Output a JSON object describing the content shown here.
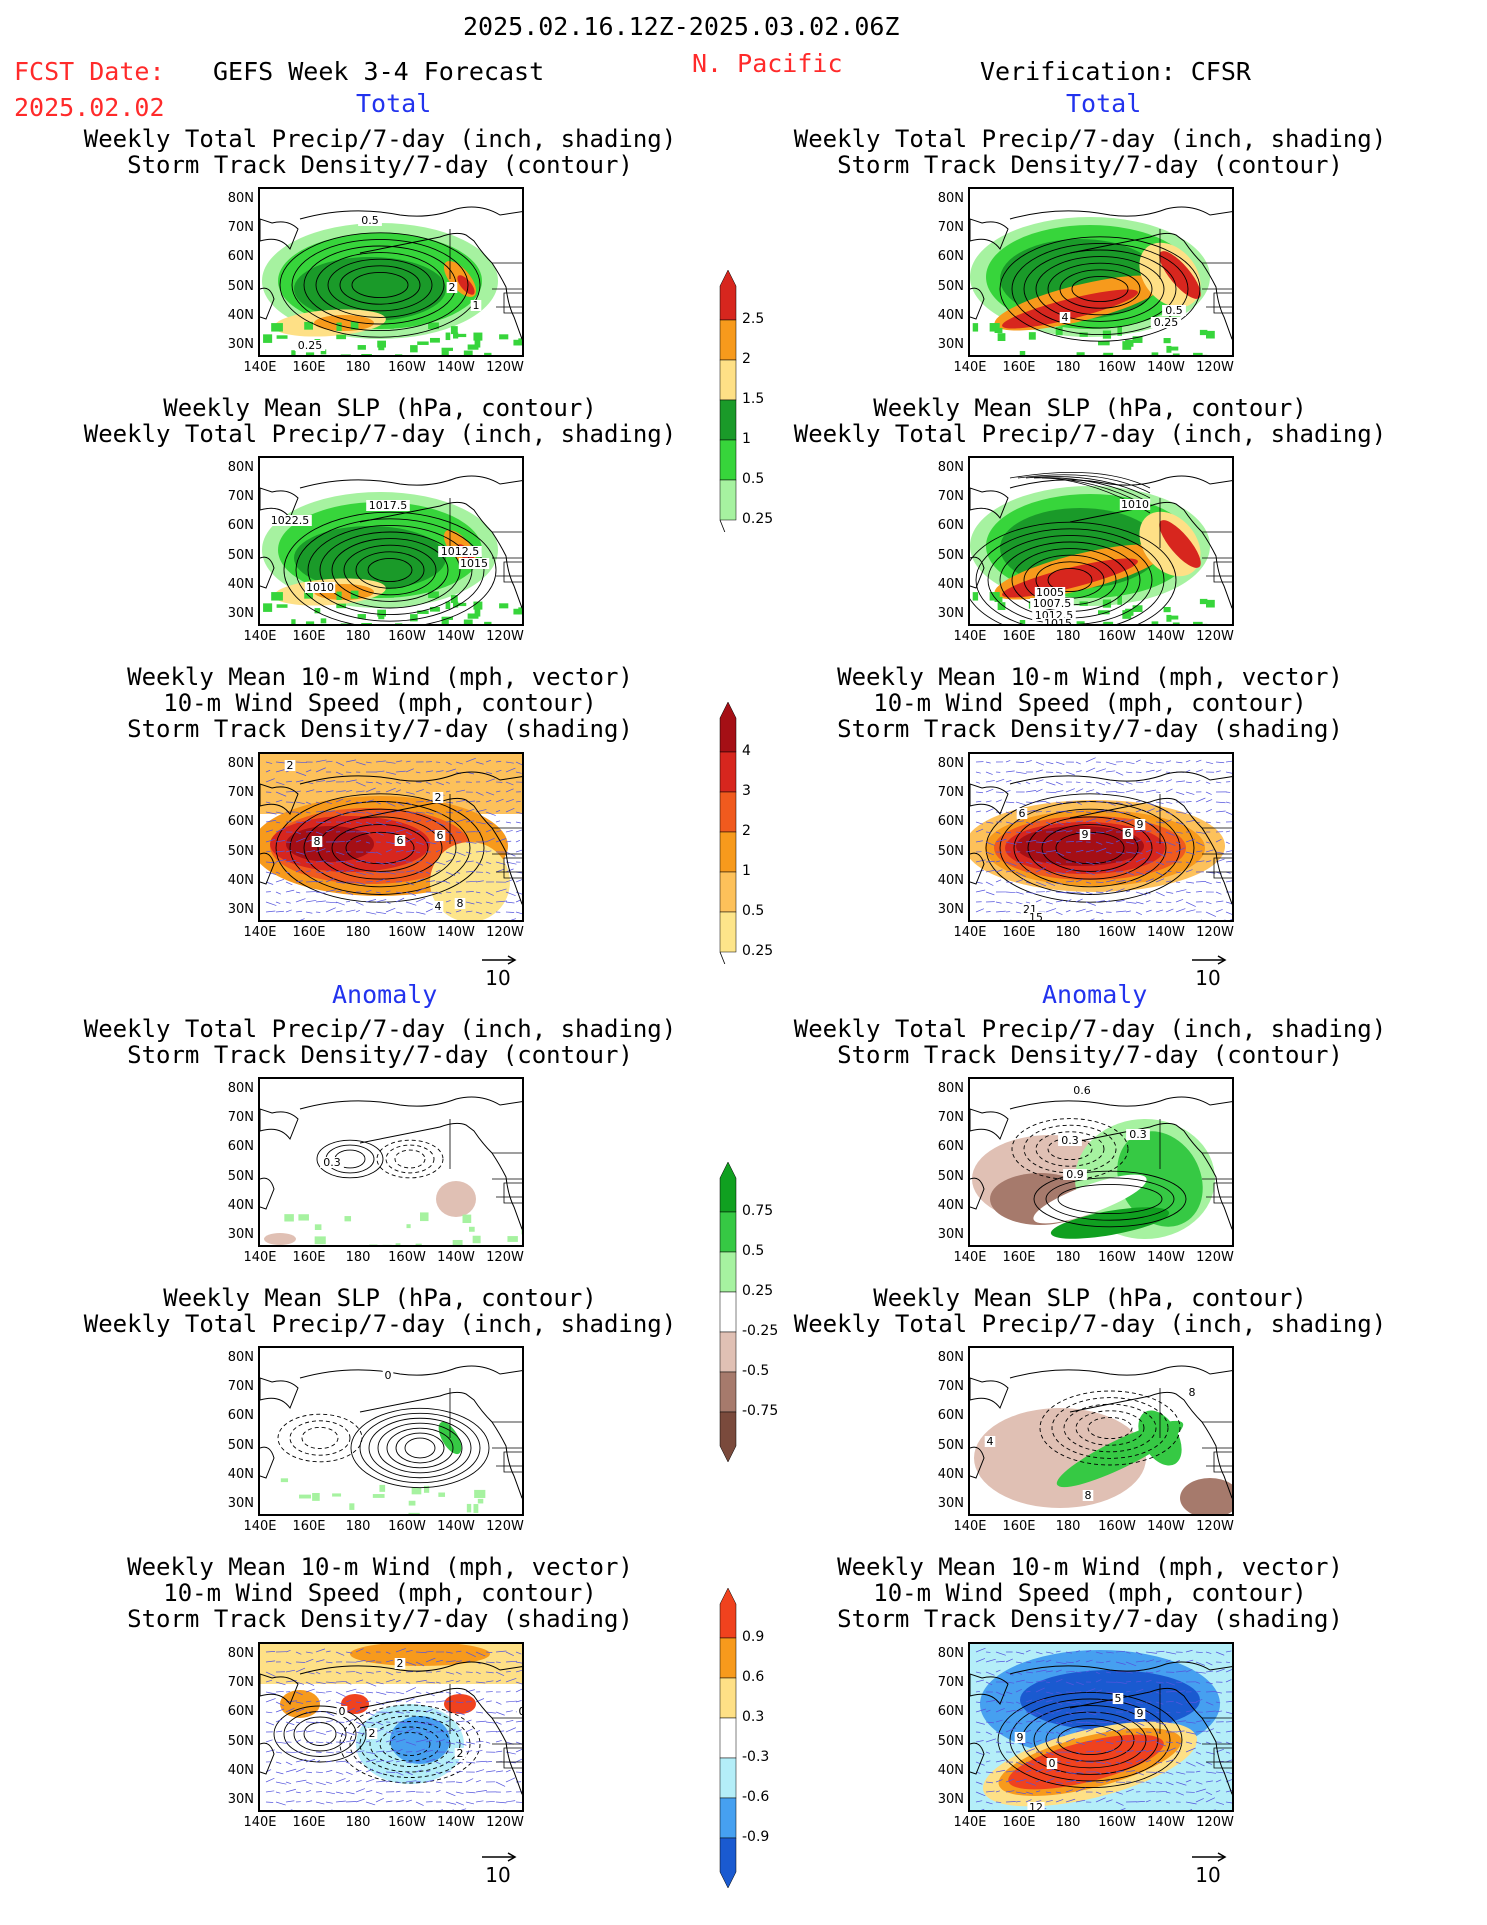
{
  "header": {
    "date_range": "2025.02.16.12Z-2025.03.02.06Z",
    "fcst_label": "FCST Date:",
    "fcst_date": "2025.02.02",
    "model": "GEFS Week 3-4 Forecast",
    "region": "N. Pacific",
    "verification": "Verification: CFSR"
  },
  "sections": {
    "total": "Total",
    "anomaly": "Anomaly"
  },
  "panel_titles": {
    "precip_storm": [
      "Weekly Total Precip/7-day (inch, shading)",
      "Storm Track Density/7-day (contour)"
    ],
    "slp_precip": [
      "Weekly Mean SLP (hPa, contour)",
      "Weekly Total Precip/7-day (inch, shading)"
    ],
    "wind_storm": [
      "Weekly Mean 10-m Wind (mph, vector)",
      "10-m Wind Speed (mph, contour)",
      "Storm Track Density/7-day (shading)"
    ]
  },
  "axes": {
    "lat_labels": [
      "80N",
      "70N",
      "60N",
      "50N",
      "40N",
      "30N"
    ],
    "lon_labels": [
      "140E",
      "160E",
      "180",
      "160W",
      "140W",
      "120W"
    ]
  },
  "vector_ref": "10",
  "contour_labels": {
    "p1L": [
      "0.5",
      "2",
      "1",
      "0.25"
    ],
    "p1R": [
      "4",
      "0.5",
      "0.25"
    ],
    "p2L": [
      "1017.5",
      "1022.5",
      "1012.5",
      "1015",
      "1010"
    ],
    "p2R": [
      "1010",
      "1005",
      "1007.5",
      "1012.5",
      "1015"
    ],
    "p3L": [
      "2",
      "2",
      "8",
      "6",
      "4",
      "8",
      "6"
    ],
    "p3R": [
      "6",
      "9",
      "9",
      "6",
      "21",
      "15"
    ],
    "p4L": [
      "0.3"
    ],
    "p4R": [
      "0.6",
      "0.3",
      "0.3",
      "0.9"
    ],
    "p5L": [
      "0"
    ],
    "p5R": [
      "8",
      "4",
      "8"
    ],
    "p6L": [
      "2",
      "0",
      "2",
      "2",
      "0"
    ],
    "p6R": [
      "5",
      "9",
      "9",
      "0",
      "12"
    ]
  },
  "colorbars": {
    "precip_total": {
      "labels": [
        "2.5",
        "2",
        "1.5",
        "1",
        "0.5",
        "0.25"
      ],
      "colors": [
        "#d7261e",
        "#f79a1c",
        "#fee086",
        "#1a9a29",
        "#37d53b",
        "#a6f2a0"
      ]
    },
    "storm_total": {
      "labels": [
        "4",
        "3",
        "2",
        "1",
        "0.5",
        "0.25"
      ],
      "colors": [
        "#a50f15",
        "#d7261e",
        "#f05a1e",
        "#f79a1c",
        "#fdc15a",
        "#fde58a"
      ]
    },
    "precip_anom": {
      "labels": [
        "0.75",
        "0.5",
        "0.25",
        "-0.25",
        "-0.5",
        "-0.75"
      ],
      "colors": [
        "#10a020",
        "#36c944",
        "#a6f2a0",
        "#ffffff",
        "#e0c0b4",
        "#a67a6c",
        "#7a4a3c"
      ]
    },
    "storm_anom": {
      "labels": [
        "0.9",
        "0.6",
        "0.3",
        "-0.3",
        "-0.6",
        "-0.9"
      ],
      "colors": [
        "#f0421e",
        "#f79a1c",
        "#fee086",
        "#ffffff",
        "#b4eef8",
        "#46a0f0",
        "#1a5ad0"
      ]
    }
  }
}
